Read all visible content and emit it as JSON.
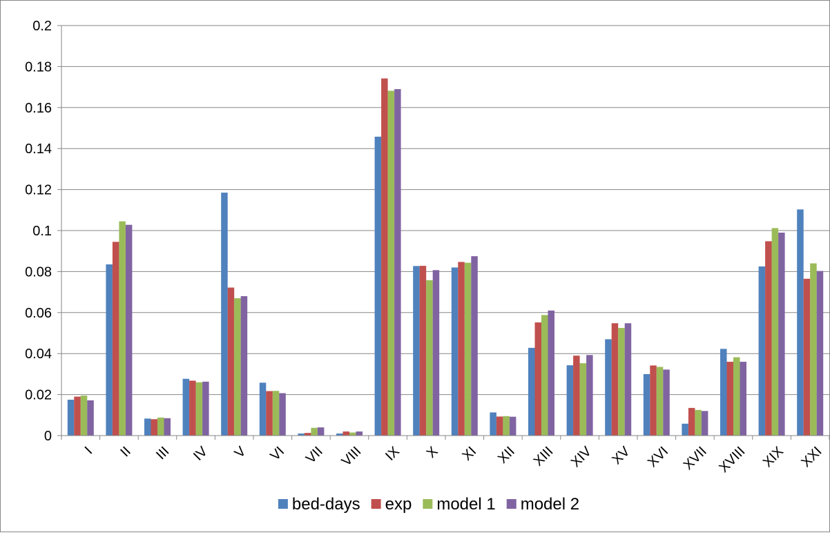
{
  "chart_data": {
    "type": "bar",
    "title": "",
    "xlabel": "",
    "ylabel": "",
    "ylim": [
      0,
      0.2
    ],
    "yticks": [
      0,
      0.02,
      0.04,
      0.06,
      0.08,
      0.1,
      0.12,
      0.14,
      0.16,
      0.18,
      0.2
    ],
    "ytick_labels": [
      "0",
      "0.02",
      "0.04",
      "0.06",
      "0.08",
      "0.1",
      "0.12",
      "0.14",
      "0.16",
      "0.18",
      "0.2"
    ],
    "grid": true,
    "legend_position": "bottom",
    "categories": [
      "I",
      "II",
      "III",
      "IV",
      "V",
      "VI",
      "VII",
      "VIII",
      "IX",
      "X",
      "XI",
      "XII",
      "XIII",
      "XIV",
      "XV",
      "XVI",
      "XVII",
      "XVIII",
      "XIX",
      "XXI"
    ],
    "series": [
      {
        "name": "bed-days",
        "color": "#4F81BD",
        "values": [
          0.0175,
          0.0835,
          0.0083,
          0.0277,
          0.1185,
          0.0258,
          0.001,
          0.001,
          0.1458,
          0.0827,
          0.082,
          0.0113,
          0.0428,
          0.0343,
          0.047,
          0.03,
          0.0058,
          0.0423,
          0.0825,
          0.1103
        ]
      },
      {
        "name": "exp",
        "color": "#C0504D",
        "values": [
          0.019,
          0.0945,
          0.008,
          0.0268,
          0.0722,
          0.0217,
          0.0013,
          0.002,
          0.1742,
          0.0828,
          0.0847,
          0.0093,
          0.0552,
          0.039,
          0.0548,
          0.0342,
          0.0135,
          0.036,
          0.0948,
          0.0765
        ]
      },
      {
        "name": "model 1",
        "color": "#9BBB59",
        "values": [
          0.0195,
          0.1045,
          0.0088,
          0.026,
          0.067,
          0.0218,
          0.0038,
          0.0015,
          0.1682,
          0.0758,
          0.0843,
          0.0095,
          0.0588,
          0.0353,
          0.0525,
          0.0335,
          0.0125,
          0.0382,
          0.1012,
          0.084
        ]
      },
      {
        "name": "model 2",
        "color": "#8064A2",
        "values": [
          0.0172,
          0.1028,
          0.0085,
          0.0263,
          0.068,
          0.0207,
          0.004,
          0.002,
          0.169,
          0.0807,
          0.0875,
          0.0092,
          0.061,
          0.0393,
          0.0548,
          0.0322,
          0.012,
          0.036,
          0.099,
          0.0803
        ]
      }
    ]
  }
}
